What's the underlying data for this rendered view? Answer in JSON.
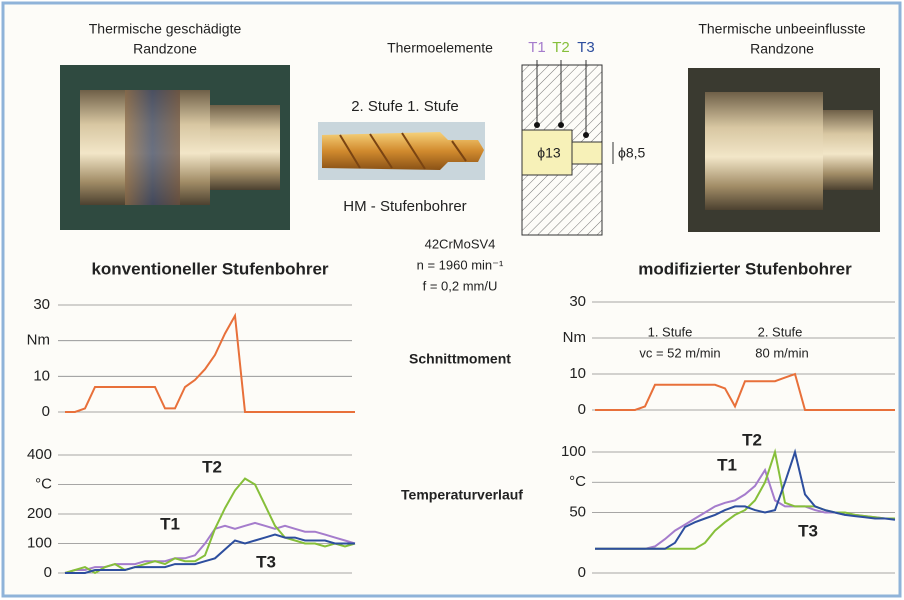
{
  "photos": {
    "left_caption": [
      "Thermische geschädigte",
      "Randzone"
    ],
    "right_caption": [
      "Thermische unbeeinflusste",
      "Randzone"
    ]
  },
  "drill": {
    "stages": "2. Stufe 1. Stufe",
    "name": "HM - Stufenbohrer"
  },
  "thermocouples": {
    "label": "Thermoelemente",
    "names": [
      "T1",
      "T2",
      "T3"
    ],
    "bore_large": "ϕ13",
    "bore_small": "ϕ8,5"
  },
  "process": {
    "material": "42CrMoSV4",
    "speed": "n = 1960 min⁻¹",
    "feed": "f = 0,2 mm/U"
  },
  "row_labels": [
    "Schnittmoment",
    "Temperaturverlauf"
  ],
  "chart_data": [
    {
      "type": "line",
      "title": "konventioneller Stufenbohrer",
      "ylim": [
        0,
        30
      ],
      "yticks": [
        0,
        10,
        {
          "value": 20,
          "label": "Nm"
        },
        30
      ],
      "grid": true,
      "color": "#e8703a",
      "values": [
        0,
        0,
        1,
        7,
        7,
        7,
        7,
        7,
        7,
        7,
        1,
        1,
        7,
        9,
        12,
        16,
        22,
        27,
        0,
        0,
        0,
        0,
        0,
        0,
        0,
        0,
        0,
        0,
        0,
        0
      ]
    },
    {
      "type": "line",
      "ylim": [
        0,
        400
      ],
      "yticks": [
        0,
        100,
        200,
        {
          "value": 300,
          "label": "°C"
        },
        400
      ],
      "grid": true,
      "series": [
        {
          "name": "T1",
          "color": "#a57ccc",
          "values": [
            0,
            10,
            10,
            20,
            20,
            30,
            30,
            30,
            40,
            40,
            40,
            50,
            50,
            60,
            100,
            150,
            160,
            150,
            160,
            170,
            160,
            150,
            160,
            150,
            140,
            140,
            130,
            120,
            110,
            100
          ]
        },
        {
          "name": "T2",
          "color": "#86bf3a",
          "values": [
            0,
            10,
            20,
            0,
            20,
            30,
            10,
            20,
            30,
            40,
            30,
            50,
            40,
            40,
            60,
            150,
            220,
            280,
            320,
            300,
            230,
            160,
            120,
            110,
            100,
            100,
            90,
            100,
            90,
            100
          ]
        },
        {
          "name": "T3",
          "color": "#2d4e9e",
          "values": [
            0,
            0,
            0,
            10,
            10,
            10,
            10,
            20,
            20,
            20,
            20,
            30,
            30,
            30,
            40,
            50,
            80,
            110,
            100,
            110,
            120,
            130,
            120,
            120,
            110,
            110,
            110,
            100,
            100,
            100
          ]
        }
      ]
    },
    {
      "type": "line",
      "title": "modifizierter Stufenbohrer",
      "ylim": [
        0,
        30
      ],
      "yticks": [
        0,
        10,
        {
          "value": 20,
          "label": "Nm"
        },
        30
      ],
      "grid": true,
      "color": "#e8703a",
      "annotations": [
        "1. Stufe",
        "vc = 52 m/min",
        "2. Stufe",
        "80 m/min"
      ],
      "values": [
        0,
        0,
        0,
        0,
        0,
        1,
        7,
        7,
        7,
        7,
        7,
        7,
        7,
        6,
        1,
        8,
        8,
        8,
        8,
        9,
        10,
        0,
        0,
        0,
        0,
        0,
        0,
        0,
        0,
        0,
        0
      ]
    },
    {
      "type": "line",
      "ylim": [
        0,
        100
      ],
      "yticks": [
        0,
        50,
        {
          "value": 75,
          "label": "°C"
        },
        100
      ],
      "grid": true,
      "series": [
        {
          "name": "T1",
          "color": "#a57ccc",
          "values": [
            20,
            20,
            20,
            20,
            20,
            20,
            22,
            28,
            35,
            40,
            45,
            50,
            55,
            58,
            60,
            65,
            72,
            85,
            60,
            55,
            55,
            55,
            52,
            50,
            50,
            48,
            48,
            47,
            46,
            45,
            45
          ]
        },
        {
          "name": "T2",
          "color": "#86bf3a",
          "values": [
            20,
            20,
            20,
            20,
            20,
            20,
            20,
            20,
            20,
            20,
            20,
            25,
            35,
            42,
            48,
            52,
            60,
            75,
            100,
            58,
            55,
            55,
            55,
            52,
            50,
            50,
            48,
            47,
            46,
            45,
            45
          ]
        },
        {
          "name": "T3",
          "color": "#2d4e9e",
          "values": [
            20,
            20,
            20,
            20,
            20,
            20,
            20,
            20,
            25,
            38,
            42,
            45,
            48,
            52,
            55,
            55,
            52,
            50,
            52,
            75,
            100,
            65,
            55,
            52,
            50,
            48,
            47,
            46,
            45,
            45,
            44
          ]
        }
      ]
    }
  ]
}
